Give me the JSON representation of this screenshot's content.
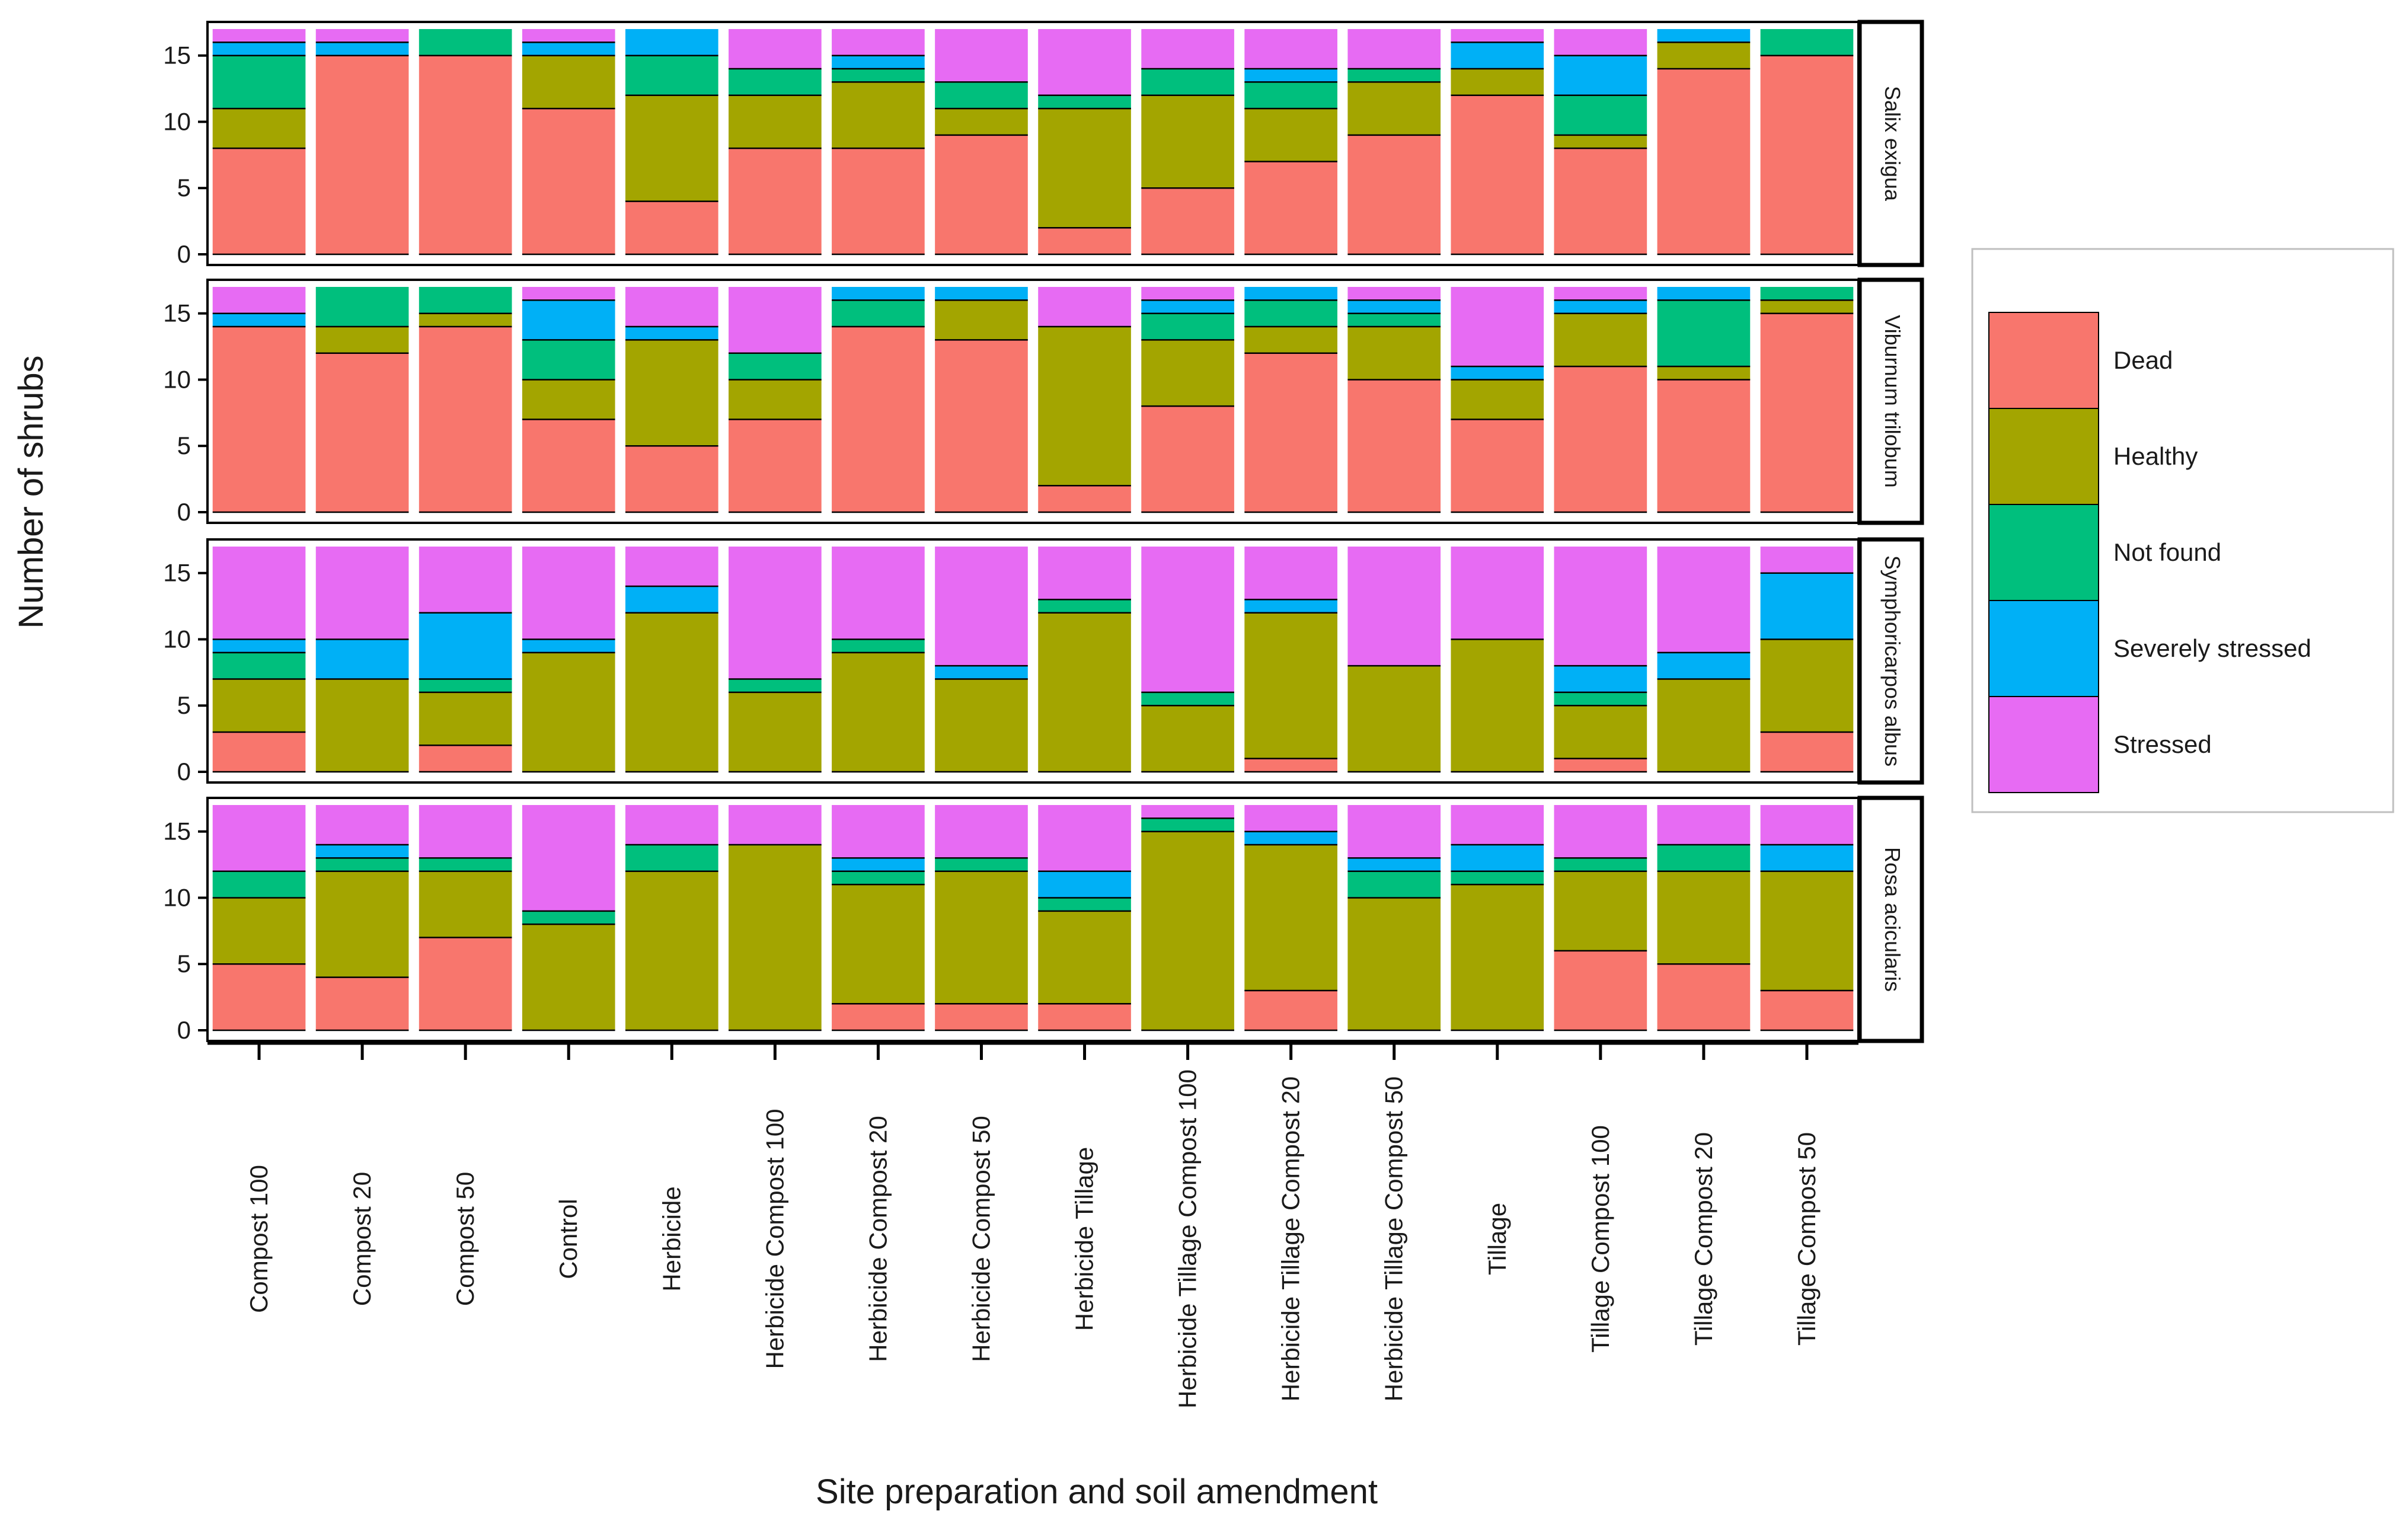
{
  "chart_data": {
    "type": "bar",
    "stacked": true,
    "xlabel": "Site preparation and soil amendment",
    "ylabel": "Number of shrubs",
    "ylim": [
      0,
      17
    ],
    "yticks": [
      0,
      5,
      10,
      15
    ],
    "categories": [
      "Compost 100",
      "Compost 20",
      "Compost 50",
      "Control",
      "Herbicide",
      "Herbicide Compost 100",
      "Herbicide Compost 20",
      "Herbicide Compost 50",
      "Herbicide Tillage",
      "Herbicide Tillage Compost 100",
      "Herbicide Tillage Compost 20",
      "Herbicide Tillage Compost 50",
      "Tillage",
      "Tillage Compost 100",
      "Tillage Compost 20",
      "Tillage Compost 50"
    ],
    "statuses": [
      {
        "name": "Dead",
        "color": "#F8766D"
      },
      {
        "name": "Healthy",
        "color": "#A3A500"
      },
      {
        "name": "Not found",
        "color": "#00BF7D"
      },
      {
        "name": "Severely stressed",
        "color": "#00B0F6"
      },
      {
        "name": "Stressed",
        "color": "#E76BF3"
      }
    ],
    "panels": [
      {
        "species": "Salix exigua",
        "series": [
          {
            "name": "Dead",
            "values": [
              8,
              15,
              15,
              11,
              4,
              8,
              8,
              9,
              2,
              5,
              7,
              9,
              12,
              8,
              14,
              15
            ]
          },
          {
            "name": "Healthy",
            "values": [
              3,
              0,
              0,
              4,
              8,
              4,
              5,
              2,
              9,
              7,
              4,
              4,
              2,
              1,
              2,
              0
            ]
          },
          {
            "name": "Not found",
            "values": [
              4,
              0,
              2,
              0,
              3,
              2,
              1,
              2,
              1,
              2,
              2,
              1,
              0,
              3,
              0,
              2
            ]
          },
          {
            "name": "Severely stressed",
            "values": [
              1,
              1,
              0,
              1,
              2,
              0,
              1,
              0,
              0,
              0,
              1,
              0,
              2,
              3,
              1,
              0
            ]
          },
          {
            "name": "Stressed",
            "values": [
              1,
              1,
              0,
              1,
              0,
              3,
              2,
              4,
              5,
              3,
              3,
              3,
              1,
              2,
              0,
              0
            ]
          }
        ]
      },
      {
        "species": "Viburnum trilobum",
        "series": [
          {
            "name": "Dead",
            "values": [
              14,
              12,
              14,
              7,
              5,
              7,
              14,
              13,
              2,
              8,
              12,
              10,
              7,
              11,
              10,
              15
            ]
          },
          {
            "name": "Healthy",
            "values": [
              0,
              2,
              1,
              3,
              8,
              3,
              0,
              3,
              12,
              5,
              2,
              4,
              3,
              4,
              1,
              1
            ]
          },
          {
            "name": "Not found",
            "values": [
              0,
              3,
              2,
              3,
              0,
              2,
              2,
              0,
              0,
              2,
              2,
              1,
              0,
              0,
              5,
              1
            ]
          },
          {
            "name": "Severely stressed",
            "values": [
              1,
              0,
              0,
              3,
              1,
              0,
              1,
              1,
              0,
              1,
              1,
              1,
              1,
              1,
              1,
              0
            ]
          },
          {
            "name": "Stressed",
            "values": [
              2,
              0,
              0,
              1,
              3,
              5,
              0,
              0,
              3,
              1,
              0,
              1,
              6,
              1,
              0,
              0
            ]
          }
        ]
      },
      {
        "species": "Symphoricarpos albus",
        "series": [
          {
            "name": "Dead",
            "values": [
              3,
              0,
              2,
              0,
              0,
              0,
              0,
              0,
              0,
              0,
              1,
              0,
              0,
              1,
              0,
              3
            ]
          },
          {
            "name": "Healthy",
            "values": [
              4,
              7,
              4,
              9,
              12,
              6,
              9,
              7,
              12,
              5,
              11,
              8,
              10,
              4,
              7,
              7
            ]
          },
          {
            "name": "Not found",
            "values": [
              2,
              0,
              1,
              0,
              0,
              1,
              1,
              0,
              1,
              1,
              0,
              0,
              0,
              1,
              0,
              0
            ]
          },
          {
            "name": "Severely stressed",
            "values": [
              1,
              3,
              5,
              1,
              2,
              0,
              0,
              1,
              0,
              0,
              1,
              0,
              0,
              2,
              2,
              5
            ]
          },
          {
            "name": "Stressed",
            "values": [
              7,
              7,
              5,
              7,
              3,
              10,
              7,
              9,
              4,
              11,
              4,
              9,
              7,
              9,
              8,
              2
            ]
          }
        ]
      },
      {
        "species": "Rosa acicularis",
        "series": [
          {
            "name": "Dead",
            "values": [
              5,
              4,
              7,
              0,
              0,
              0,
              2,
              2,
              2,
              0,
              3,
              0,
              0,
              6,
              5,
              3
            ]
          },
          {
            "name": "Healthy",
            "values": [
              5,
              8,
              5,
              8,
              12,
              14,
              9,
              10,
              7,
              15,
              11,
              10,
              11,
              6,
              7,
              9
            ]
          },
          {
            "name": "Not found",
            "values": [
              2,
              1,
              1,
              1,
              2,
              0,
              1,
              1,
              1,
              1,
              0,
              2,
              1,
              1,
              2,
              0
            ]
          },
          {
            "name": "Severely stressed",
            "values": [
              0,
              1,
              0,
              0,
              0,
              0,
              1,
              0,
              2,
              0,
              1,
              1,
              2,
              0,
              0,
              2
            ]
          },
          {
            "name": "Stressed",
            "values": [
              5,
              3,
              4,
              8,
              3,
              3,
              4,
              4,
              5,
              1,
              2,
              4,
              3,
              4,
              3,
              3
            ]
          }
        ]
      }
    ],
    "legend_position": "right"
  }
}
